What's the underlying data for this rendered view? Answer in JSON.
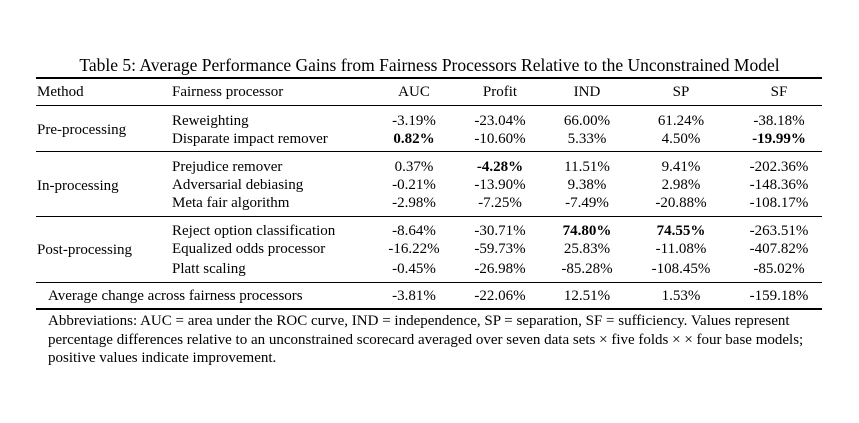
{
  "caption": "Table 5: Average Performance Gains from Fairness Processors Relative to the Unconstrained Model",
  "headers": {
    "method": "Method",
    "processor": "Fairness processor",
    "auc": "AUC",
    "profit": "Profit",
    "ind": "IND",
    "sp": "SP",
    "sf": "SF"
  },
  "groups": [
    {
      "method": "Pre-processing",
      "rows": [
        {
          "processor": "Reweighting",
          "auc": "-3.19%",
          "profit": "-23.04%",
          "ind": "66.00%",
          "sp": "61.24%",
          "sf": "-38.18%",
          "bold": []
        },
        {
          "processor": "Disparate impact remover",
          "auc": "0.82%",
          "profit": "-10.60%",
          "ind": "5.33%",
          "sp": "4.50%",
          "sf": "-19.99%",
          "bold": [
            "auc",
            "sf"
          ]
        }
      ]
    },
    {
      "method": "In-processing",
      "rows": [
        {
          "processor": "Prejudice remover",
          "auc": "0.37%",
          "profit": "-4.28%",
          "ind": "11.51%",
          "sp": "9.41%",
          "sf": "-202.36%",
          "bold": [
            "profit"
          ]
        },
        {
          "processor": "Adversarial debiasing",
          "auc": "-0.21%",
          "profit": "-13.90%",
          "ind": "9.38%",
          "sp": "2.98%",
          "sf": "-148.36%",
          "bold": []
        },
        {
          "processor": "Meta fair algorithm",
          "auc": "-2.98%",
          "profit": "-7.25%",
          "ind": "-7.49%",
          "sp": "-20.88%",
          "sf": "-108.17%",
          "bold": []
        }
      ]
    },
    {
      "method": "Post-processing",
      "rows": [
        {
          "processor": "Reject option classification",
          "auc": "-8.64%",
          "profit": "-30.71%",
          "ind": "74.80%",
          "sp": "74.55%",
          "sf": "-263.51%",
          "bold": [
            "ind",
            "sp"
          ]
        },
        {
          "processor": "Equalized odds processor",
          "auc": "-16.22%",
          "profit": "-59.73%",
          "ind": "25.83%",
          "sp": "-11.08%",
          "sf": "-407.82%",
          "bold": []
        },
        {
          "processor": "Platt scaling",
          "auc": "-0.45%",
          "profit": "-26.98%",
          "ind": "-85.28%",
          "sp": "-108.45%",
          "sf": "-85.02%",
          "bold": []
        }
      ]
    }
  ],
  "average": {
    "label": "Average change across fairness processors",
    "auc": "-3.81%",
    "profit": "-22.06%",
    "ind": "12.51%",
    "sp": "1.53%",
    "sf": "-159.18%"
  },
  "note": "Abbreviations: AUC = area under the ROC curve, IND = independence, SP = separation, SF = sufficiency. Values represent percentage differences relative to an unconstrained scorecard averaged over seven data sets × five folds × × four base models; positive values indicate improvement."
}
